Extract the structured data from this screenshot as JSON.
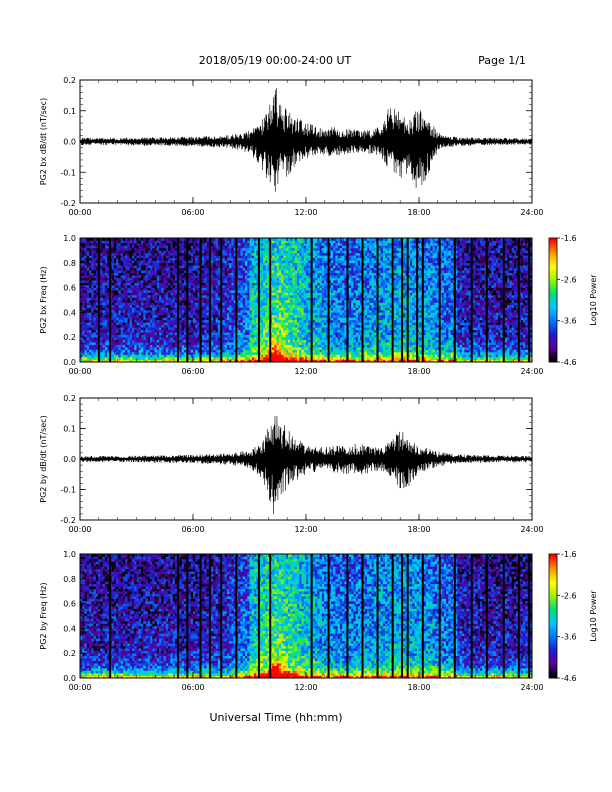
{
  "header": {
    "title": "2018/05/19   00:00-24:00 UT",
    "page_label": "Page 1/1"
  },
  "xaxis": {
    "label": "Universal Time (hh:mm)",
    "range_hours": [
      0,
      24
    ],
    "tick_values": [
      0,
      6,
      12,
      18,
      24
    ],
    "tick_labels": [
      "00:00",
      "06:00",
      "12:00",
      "18:00",
      "24:00"
    ]
  },
  "colorbar": {
    "label": "Log10 Power",
    "range": [
      -4.6,
      -1.6
    ],
    "tick_labels": [
      "-1.6",
      "-2.6",
      "-3.6",
      "-4.6"
    ],
    "colormap": [
      "#000000",
      "#5a009a",
      "#1f1fd0",
      "#0077ff",
      "#00c8ff",
      "#00e070",
      "#a0f000",
      "#ffff00",
      "#ff9900",
      "#ff0000"
    ]
  },
  "chart_data": [
    {
      "type": "line",
      "name": "bx-timeseries",
      "ylabel": "PG2 bx dB/dt (nT/sec)",
      "ylim": [
        -0.2,
        0.2
      ],
      "y_tick_labels": [
        "0.2",
        "0.1",
        "0.0",
        "-0.1",
        "-0.2"
      ],
      "y_tick_values": [
        0.2,
        0.1,
        0.0,
        -0.1,
        -0.2
      ],
      "line_color": "#000000",
      "amplitude_envelope": {
        "x": [
          0,
          2,
          4,
          6,
          8,
          9,
          9.6,
          10,
          10.3,
          10.6,
          11,
          11.5,
          12,
          13,
          14,
          15,
          16,
          16.5,
          17,
          17.5,
          18,
          19,
          20,
          22,
          24
        ],
        "upper": [
          0.012,
          0.012,
          0.014,
          0.016,
          0.022,
          0.035,
          0.06,
          0.13,
          0.2,
          0.14,
          0.1,
          0.08,
          0.06,
          0.05,
          0.045,
          0.035,
          0.05,
          0.13,
          0.09,
          0.07,
          0.12,
          0.03,
          0.015,
          0.012,
          0.01
        ],
        "lower": [
          -0.012,
          -0.012,
          -0.014,
          -0.016,
          -0.022,
          -0.04,
          -0.08,
          -0.15,
          -0.18,
          -0.13,
          -0.12,
          -0.08,
          -0.06,
          -0.05,
          -0.045,
          -0.035,
          -0.05,
          -0.11,
          -0.12,
          -0.1,
          -0.18,
          -0.03,
          -0.015,
          -0.012,
          -0.01
        ]
      }
    },
    {
      "type": "heatmap",
      "name": "bx-spectrogram",
      "ylabel": "PG2 bx Freq (Hz)",
      "ylim": [
        0,
        1
      ],
      "y_tick_labels": [
        "1.0",
        "0.8",
        "0.6",
        "0.4",
        "0.2",
        "0.0"
      ],
      "y_tick_values": [
        1.0,
        0.8,
        0.6,
        0.4,
        0.2,
        0.0
      ],
      "zlim": [
        -4.6,
        -1.6
      ],
      "data_gap_hours": [
        1.0,
        1.6,
        5.2,
        5.7,
        6.4,
        6.9,
        7.5,
        8.3,
        9.5,
        10.1,
        12.3,
        13.2,
        14.2,
        15.0,
        15.8,
        16.6,
        17.1,
        17.4,
        17.9,
        18.2,
        19.1,
        19.9,
        20.8,
        21.6,
        22.5,
        23.3,
        23.85
      ]
    },
    {
      "type": "line",
      "name": "by-timeseries",
      "ylabel": "PG2 by dB/dt (nT/sec)",
      "ylim": [
        -0.2,
        0.2
      ],
      "y_tick_labels": [
        "0.2",
        "0.1",
        "0.0",
        "-0.1",
        "-0.2"
      ],
      "y_tick_values": [
        0.2,
        0.1,
        0.0,
        -0.1,
        -0.2
      ],
      "line_color": "#000000",
      "amplitude_envelope": {
        "x": [
          0,
          2,
          4,
          6,
          8,
          9,
          9.6,
          10,
          10.3,
          10.6,
          11,
          11.5,
          12,
          13,
          14,
          15,
          16,
          16.5,
          17,
          17.5,
          18,
          19,
          20,
          22,
          24
        ],
        "upper": [
          0.01,
          0.01,
          0.012,
          0.014,
          0.02,
          0.03,
          0.05,
          0.12,
          0.16,
          0.15,
          0.1,
          0.07,
          0.05,
          0.04,
          0.05,
          0.05,
          0.04,
          0.06,
          0.1,
          0.06,
          0.05,
          0.025,
          0.015,
          0.012,
          0.01
        ],
        "lower": [
          -0.01,
          -0.01,
          -0.012,
          -0.014,
          -0.02,
          -0.03,
          -0.06,
          -0.14,
          -0.2,
          -0.13,
          -0.1,
          -0.07,
          -0.05,
          -0.04,
          -0.05,
          -0.05,
          -0.04,
          -0.06,
          -0.1,
          -0.09,
          -0.05,
          -0.025,
          -0.015,
          -0.012,
          -0.01
        ]
      }
    },
    {
      "type": "heatmap",
      "name": "by-spectrogram",
      "ylabel": "PG2 by Freq (Hz)",
      "ylim": [
        0,
        1
      ],
      "y_tick_labels": [
        "1.0",
        "0.8",
        "0.6",
        "0.4",
        "0.2",
        "0.0"
      ],
      "y_tick_values": [
        1.0,
        0.8,
        0.6,
        0.4,
        0.2,
        0.0
      ],
      "zlim": [
        -4.6,
        -1.6
      ],
      "data_gap_hours": [
        1.6,
        5.2,
        5.7,
        6.4,
        6.9,
        7.5,
        8.3,
        9.5,
        10.1,
        12.3,
        13.2,
        14.2,
        15.0,
        15.8,
        16.6,
        17.1,
        17.4,
        18.2,
        19.1,
        19.9,
        20.8,
        21.6,
        22.5,
        23.3,
        23.85
      ]
    }
  ]
}
